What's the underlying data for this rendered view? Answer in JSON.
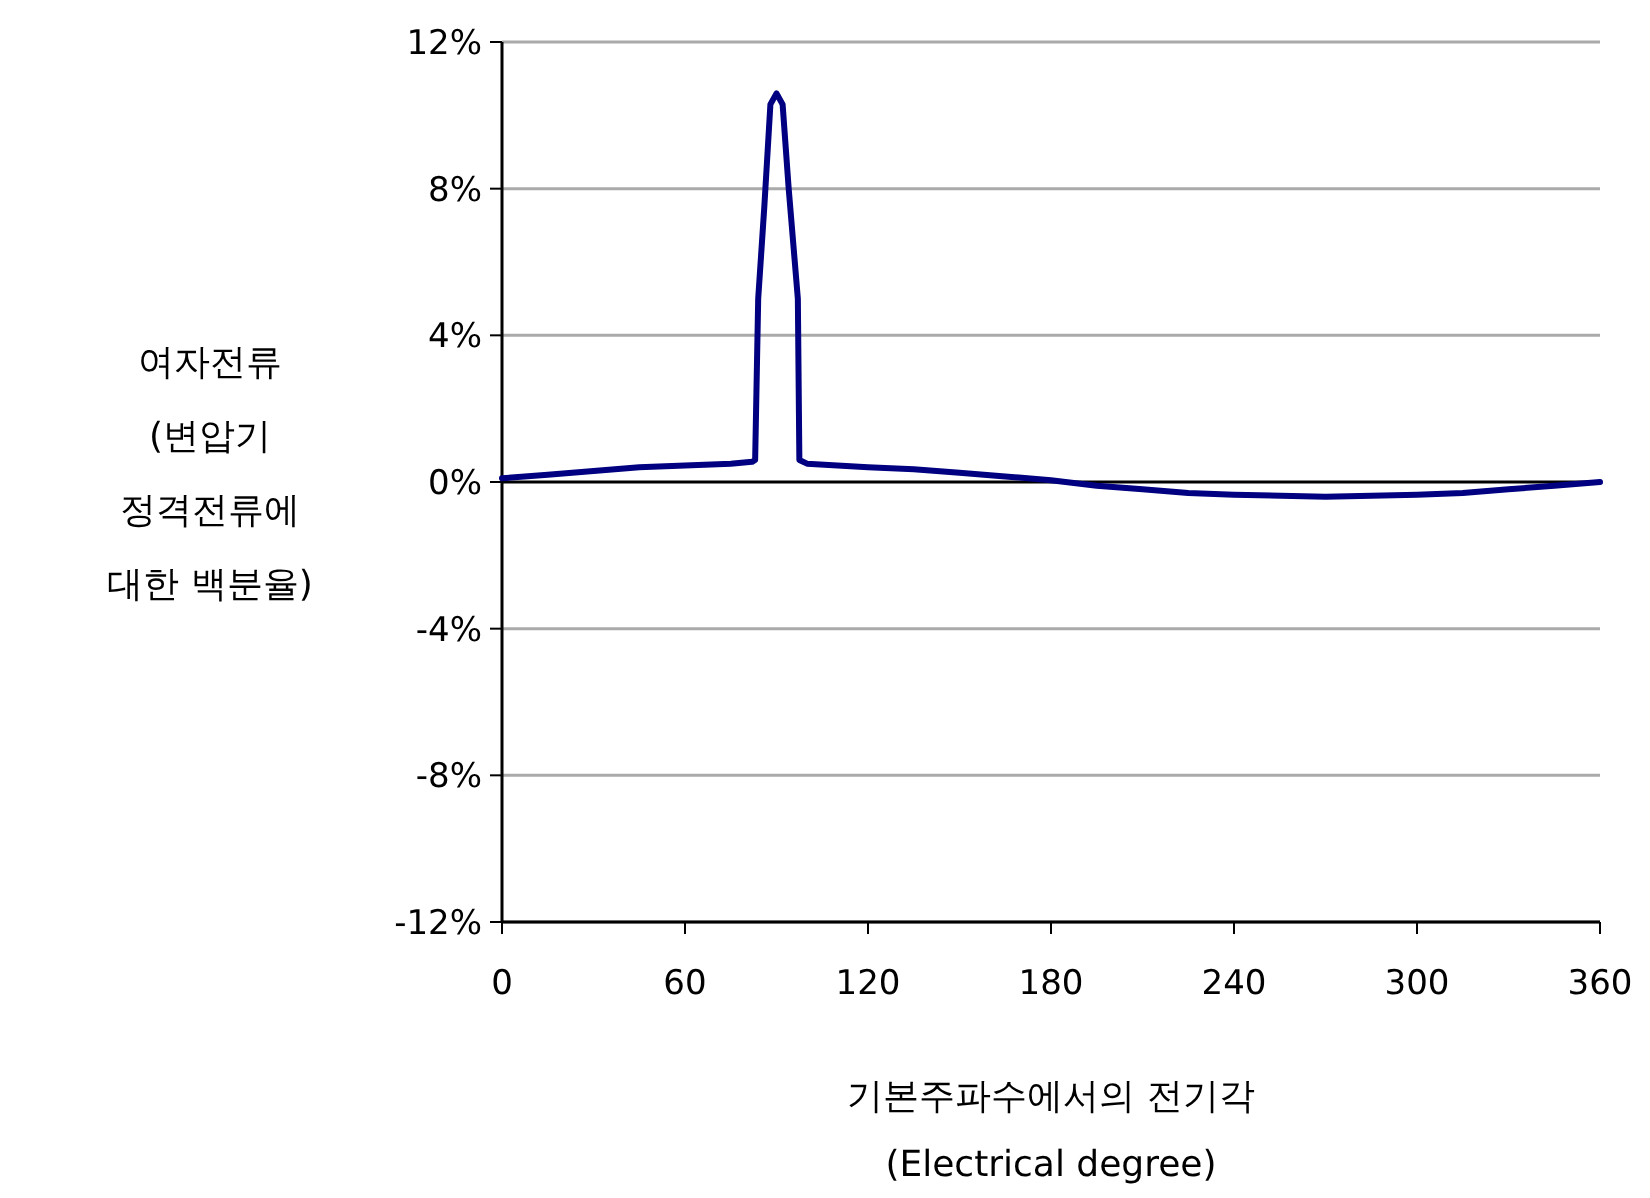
{
  "chart_data": {
    "type": "line",
    "xlabel": "기본주파수에서의 전기각\n(Electrical degree)",
    "ylabel": "여자전류\n(변압기\n정격전류에\n대한 백분율)",
    "xlim": [
      0,
      360
    ],
    "xticks": [
      0,
      60,
      120,
      180,
      240,
      300,
      360
    ],
    "ylim": [
      -12,
      12
    ],
    "yticks": [
      {
        "value": -12,
        "label": "-12%"
      },
      {
        "value": -8,
        "label": "-8%"
      },
      {
        "value": -4,
        "label": "-4%"
      },
      {
        "value": 0,
        "label": "0%"
      },
      {
        "value": 4,
        "label": "4%"
      },
      {
        "value": 8,
        "label": "8%"
      },
      {
        "value": 12,
        "label": "12%"
      }
    ],
    "grid": "y",
    "series": [
      {
        "color": "#000080",
        "x": [
          0,
          15,
          30,
          45,
          60,
          75,
          82,
          83,
          84,
          86,
          88,
          90,
          92,
          94,
          96,
          97,
          97.5,
          100,
          120,
          135,
          150,
          165,
          180,
          195,
          210,
          225,
          240,
          270,
          300,
          315,
          330,
          345,
          360
        ],
        "values": [
          0.1,
          0.2,
          0.3,
          0.4,
          0.45,
          0.5,
          0.55,
          0.6,
          5,
          7.5,
          10.3,
          10.6,
          10.3,
          8,
          6,
          5,
          0.6,
          0.5,
          0.4,
          0.35,
          0.25,
          0.15,
          0.05,
          -0.1,
          -0.2,
          -0.3,
          -0.35,
          -0.4,
          -0.35,
          -0.3,
          -0.2,
          -0.1,
          0
        ]
      }
    ]
  }
}
